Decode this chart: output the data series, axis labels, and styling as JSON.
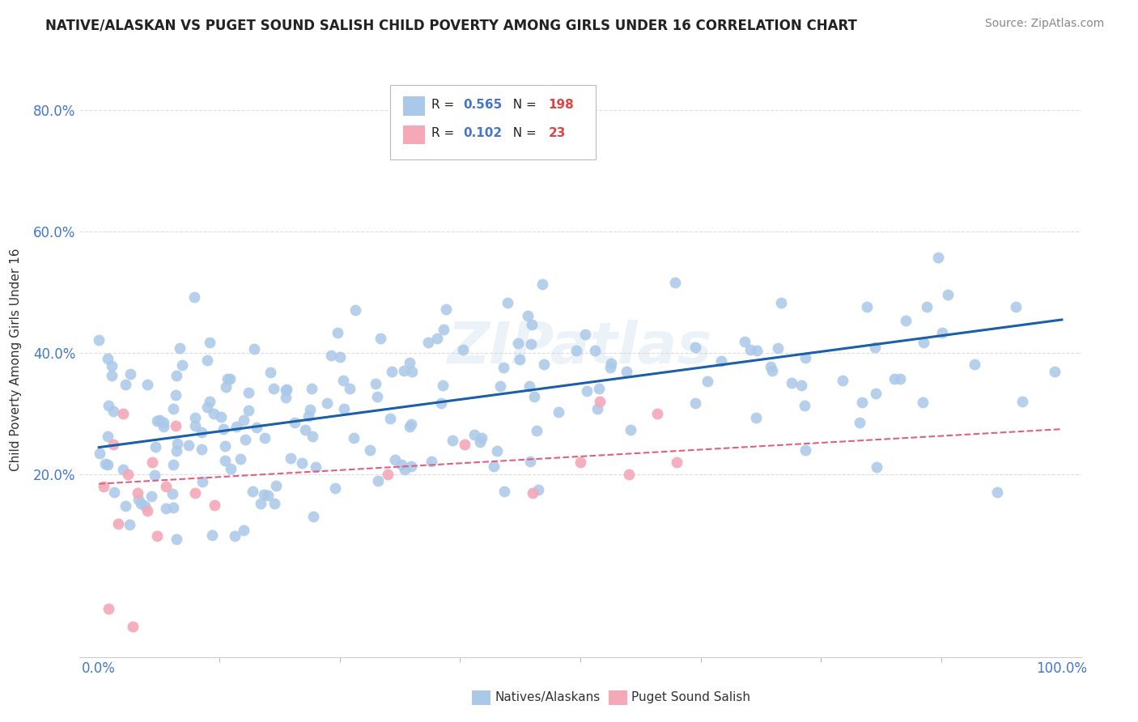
{
  "title": "NATIVE/ALASKAN VS PUGET SOUND SALISH CHILD POVERTY AMONG GIRLS UNDER 16 CORRELATION CHART",
  "source": "Source: ZipAtlas.com",
  "ylabel": "Child Poverty Among Girls Under 16",
  "xlim": [
    -0.02,
    1.02
  ],
  "ylim": [
    -0.1,
    0.88
  ],
  "xtick_positions": [
    0.0,
    1.0
  ],
  "xtick_labels": [
    "0.0%",
    "100.0%"
  ],
  "ytick_positions": [
    0.2,
    0.4,
    0.6,
    0.8
  ],
  "ytick_labels": [
    "20.0%",
    "40.0%",
    "60.0%",
    "80.0%"
  ],
  "background_color": "#ffffff",
  "grid_color": "#dddddd",
  "title_color": "#222222",
  "source_color": "#888888",
  "axis_tick_color": "#4477cc",
  "watermark": "ZIPatlas",
  "blue_color": "#aac8e8",
  "blue_line_color": "#1a5fa8",
  "pink_color": "#f4a8b8",
  "pink_line_color": "#e06080",
  "legend_R1": "0.565",
  "legend_N1": "198",
  "legend_R2": "0.102",
  "legend_N2": "23",
  "legend_label1": "Natives/Alaskans",
  "legend_label2": "Puget Sound Salish",
  "blue_line_start_y": 0.245,
  "blue_line_end_y": 0.455,
  "pink_line_start_y": 0.185,
  "pink_line_end_y": 0.275
}
